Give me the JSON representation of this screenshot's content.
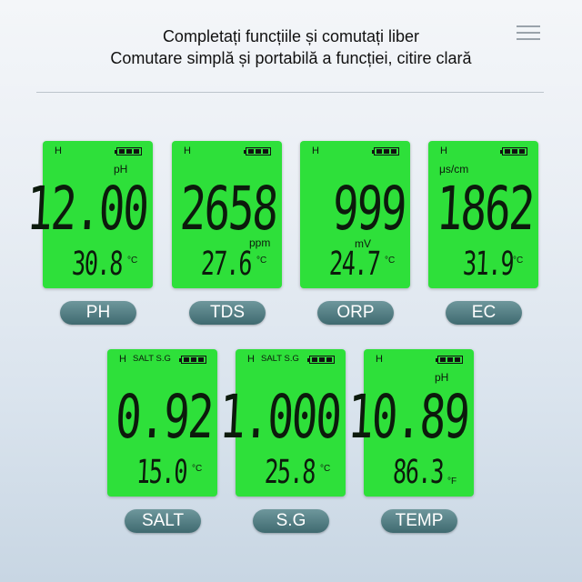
{
  "header": {
    "line1": "Completați funcțiile și comutați liber",
    "line2": "Comutare simplă și portabilă a funcției, citire clară"
  },
  "icons": {
    "menu": "hamburger-menu-icon",
    "battery": "battery-full-icon"
  },
  "colors": {
    "lcd": "#2ee03a",
    "button": "#4f7a80"
  },
  "modes": [
    {
      "label": "PH",
      "h": "H",
      "flags": "",
      "unit": "pH",
      "value": "12.00",
      "temp": "30.8",
      "temp_unit": "°C"
    },
    {
      "label": "TDS",
      "h": "H",
      "flags": "",
      "unit": "ppm",
      "value": "2658",
      "temp": "27.6",
      "temp_unit": "°C"
    },
    {
      "label": "ORP",
      "h": "H",
      "flags": "",
      "unit": "mV",
      "value": "999",
      "temp": "24.7",
      "temp_unit": "°C"
    },
    {
      "label": "EC",
      "h": "H",
      "flags": "",
      "unit": "μs/cm",
      "value": "1862",
      "temp": "31.9",
      "temp_unit": "°C"
    },
    {
      "label": "SALT",
      "h": "H",
      "flags": "SALT S.G",
      "unit": "",
      "value": "0.92",
      "temp": "15.0",
      "temp_unit": "°C"
    },
    {
      "label": "S.G",
      "h": "H",
      "flags": "SALT S.G",
      "unit": "",
      "value": "1.000",
      "temp": "25.8",
      "temp_unit": "°C"
    },
    {
      "label": "TEMP",
      "h": "H",
      "flags": "",
      "unit": "pH",
      "value": "10.89",
      "temp": "86.3",
      "temp_unit": "°F"
    }
  ]
}
